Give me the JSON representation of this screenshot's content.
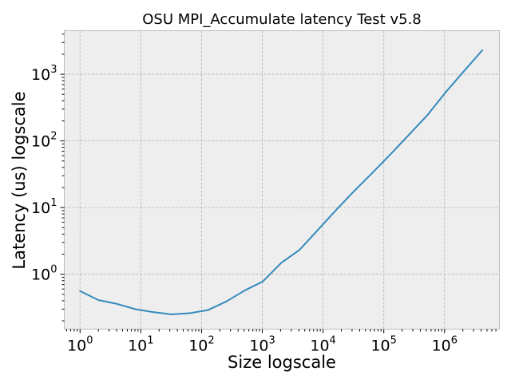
{
  "chart_data": {
    "type": "line",
    "title": "OSU MPI_Accumulate latency Test v5.8",
    "xlabel": "Size logscale",
    "ylabel": "Latency (us) logscale",
    "xscale": "log",
    "yscale": "log",
    "xlim": [
      0.55,
      8000000
    ],
    "ylim": [
      0.15,
      4500
    ],
    "grid": true,
    "x_tick_labels": [
      {
        "base": "10",
        "exp": "0"
      },
      {
        "base": "10",
        "exp": "1"
      },
      {
        "base": "10",
        "exp": "2"
      },
      {
        "base": "10",
        "exp": "3"
      },
      {
        "base": "10",
        "exp": "4"
      },
      {
        "base": "10",
        "exp": "5"
      },
      {
        "base": "10",
        "exp": "6"
      }
    ],
    "y_tick_labels": [
      {
        "base": "10",
        "exp": "0"
      },
      {
        "base": "10",
        "exp": "1"
      },
      {
        "base": "10",
        "exp": "2"
      },
      {
        "base": "10",
        "exp": "3"
      }
    ],
    "series": [
      {
        "color": "#348abd",
        "x": [
          1,
          2,
          4,
          8,
          16,
          32,
          64,
          128,
          256,
          512,
          1024,
          2048,
          4096,
          8192,
          16384,
          32768,
          65536,
          131072,
          262144,
          524288,
          1048576,
          2097152,
          4194304
        ],
        "y": [
          0.56,
          0.41,
          0.36,
          0.3,
          0.27,
          0.25,
          0.26,
          0.29,
          0.39,
          0.57,
          0.78,
          1.48,
          2.32,
          4.6,
          9.2,
          17.8,
          33.5,
          64.0,
          125,
          245,
          540,
          1120,
          2300
        ]
      }
    ]
  }
}
